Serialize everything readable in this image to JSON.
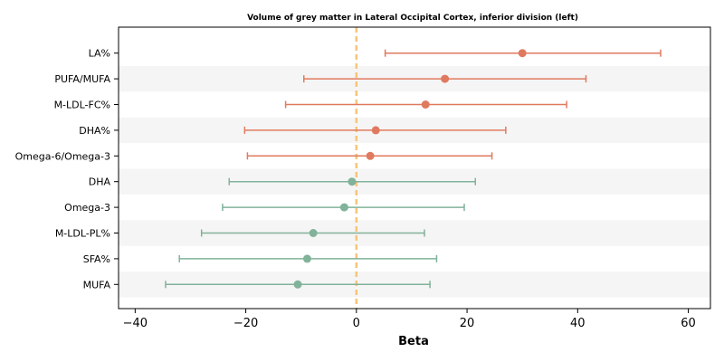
{
  "chart_data": {
    "type": "forest",
    "title": "Volume of grey matter in Lateral Occipital Cortex, inferior division (left)",
    "xlabel": "Beta",
    "ylabel": "",
    "xlim": [
      -43,
      64
    ],
    "xticks": [
      -40,
      -20,
      0,
      20,
      40,
      60
    ],
    "xtick_labels": [
      "−40",
      "−20",
      "0",
      "20",
      "40",
      "60"
    ],
    "reference_line": {
      "x": 0,
      "style": "dashed",
      "color": "#f5c57a"
    },
    "grid": false,
    "alternating_row_bands": true,
    "colors": {
      "positive": "#e07a5f",
      "negative": "#81b29a",
      "band": "#f5f5f5"
    },
    "rows": [
      {
        "label": "LA%",
        "beta": 30,
        "lower": 5.2,
        "upper": 55,
        "group": "positive"
      },
      {
        "label": "PUFA/MUFA",
        "beta": 16,
        "lower": -9.5,
        "upper": 41.5,
        "group": "positive"
      },
      {
        "label": "M-LDL-FC%",
        "beta": 12.5,
        "lower": -12.8,
        "upper": 38,
        "group": "positive"
      },
      {
        "label": "DHA%",
        "beta": 3.5,
        "lower": -20.2,
        "upper": 27,
        "group": "positive"
      },
      {
        "label": "Omega-6/Omega-3",
        "beta": 2.5,
        "lower": -19.7,
        "upper": 24.5,
        "group": "positive"
      },
      {
        "label": "DHA",
        "beta": -0.8,
        "lower": -23,
        "upper": 21.5,
        "group": "negative"
      },
      {
        "label": "Omega-3",
        "beta": -2.2,
        "lower": -24.2,
        "upper": 19.5,
        "group": "negative"
      },
      {
        "label": "M-LDL-PL%",
        "beta": -7.8,
        "lower": -28,
        "upper": 12.3,
        "group": "negative"
      },
      {
        "label": "SFA%",
        "beta": -8.9,
        "lower": -32,
        "upper": 14.5,
        "group": "negative"
      },
      {
        "label": "MUFA",
        "beta": -10.6,
        "lower": -34.5,
        "upper": 13.3,
        "group": "negative"
      }
    ]
  }
}
